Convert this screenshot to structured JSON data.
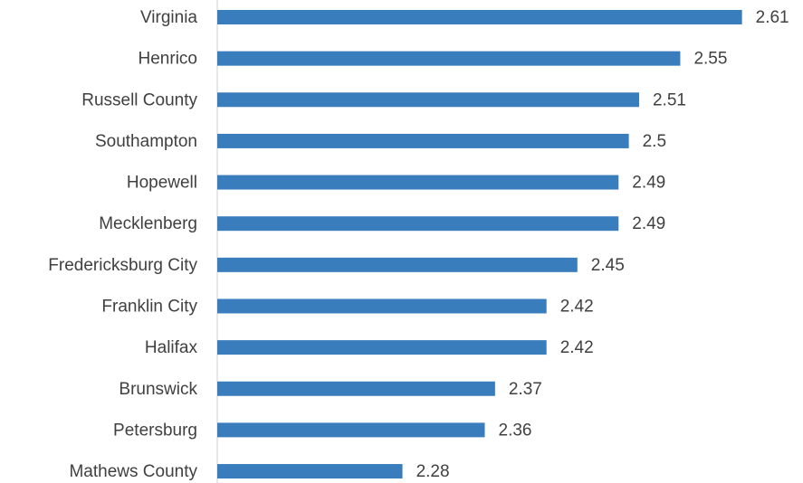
{
  "chart_data": {
    "type": "barh",
    "categories": [
      "Virginia",
      "Henrico",
      "Russell County",
      "Southampton",
      "Hopewell",
      "Mecklenberg",
      "Fredericksburg City",
      "Franklin City",
      "Halifax",
      "Brunswick",
      "Petersburg",
      "Mathews County"
    ],
    "values": [
      2.61,
      2.55,
      2.51,
      2.5,
      2.49,
      2.49,
      2.45,
      2.42,
      2.42,
      2.37,
      2.36,
      2.28
    ],
    "color": "#3a7dbd",
    "xlim": [
      2.1,
      2.62
    ]
  }
}
